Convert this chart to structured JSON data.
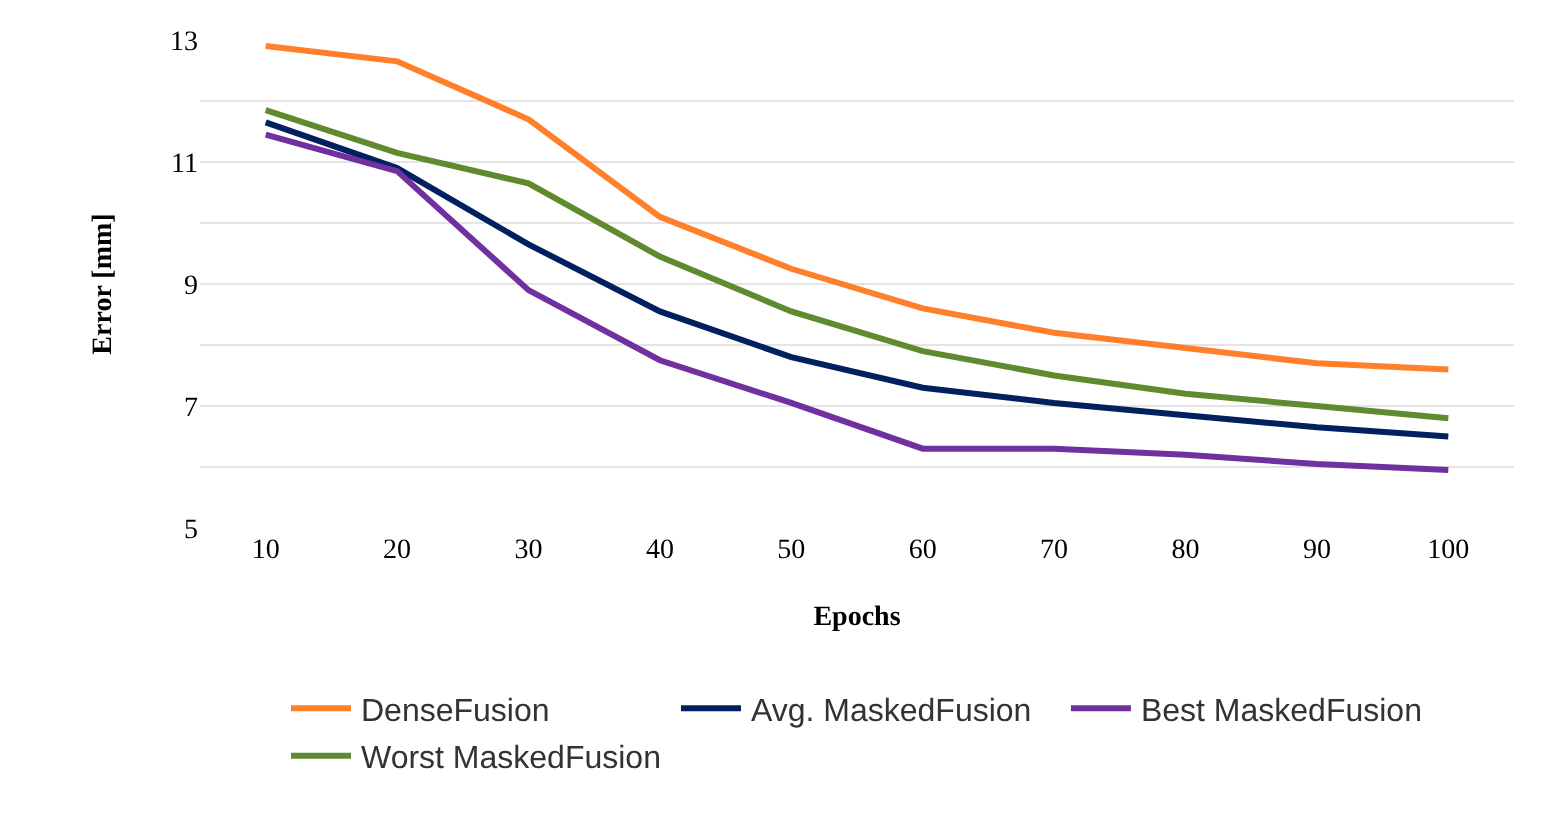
{
  "chart_data": {
    "type": "line",
    "xlabel": "Epochs",
    "ylabel": "Error [mm]",
    "categories": [
      "10",
      "20",
      "30",
      "40",
      "50",
      "60",
      "70",
      "80",
      "90",
      "100"
    ],
    "series": [
      {
        "name": "DenseFusion",
        "color": "#ff7f2a",
        "values": [
          12.9,
          12.65,
          11.7,
          10.1,
          9.25,
          8.6,
          8.2,
          7.95,
          7.7,
          7.6
        ]
      },
      {
        "name": "Avg. MaskedFusion",
        "color": "#002060",
        "values": [
          11.65,
          10.9,
          9.65,
          8.55,
          7.8,
          7.3,
          7.05,
          6.85,
          6.65,
          6.5
        ]
      },
      {
        "name": "Best MaskedFusion",
        "color": "#7030a0",
        "values": [
          11.45,
          10.85,
          8.9,
          7.75,
          7.05,
          6.3,
          6.3,
          6.2,
          6.05,
          5.95
        ]
      },
      {
        "name": "Worst MaskedFusion",
        "color": "#5f8a2f",
        "values": [
          11.85,
          11.15,
          10.65,
          9.45,
          8.55,
          7.9,
          7.5,
          7.2,
          7.0,
          6.8
        ]
      }
    ],
    "ylim": [
      5,
      13
    ],
    "yticks": [
      5,
      {
        "value": 6,
        "label": null
      },
      7,
      {
        "value": 8,
        "label": null
      },
      9,
      {
        "value": 10,
        "label": null
      },
      11,
      {
        "value": 12,
        "label": null
      },
      13
    ],
    "grid": "y",
    "legend": "bottom",
    "marker": "none",
    "line_style": "solid"
  }
}
